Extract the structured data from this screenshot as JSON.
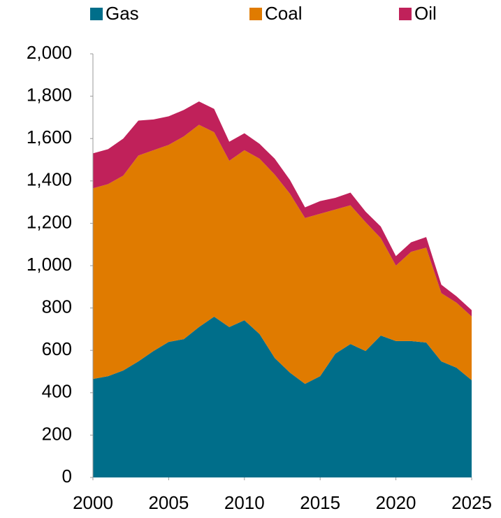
{
  "chart_data": {
    "type": "stacked_area",
    "x": [
      2000,
      2001,
      2002,
      2003,
      2004,
      2005,
      2006,
      2007,
      2008,
      2009,
      2010,
      2011,
      2012,
      2013,
      2014,
      2015,
      2016,
      2017,
      2018,
      2019,
      2020,
      2021,
      2022,
      2023,
      2024,
      2025
    ],
    "series": [
      {
        "name": "Gas",
        "color": "#006e8a",
        "values": [
          465,
          478,
          505,
          548,
          597,
          640,
          653,
          710,
          759,
          710,
          742,
          677,
          564,
          495,
          442,
          478,
          584,
          630,
          597,
          670,
          644,
          644,
          637,
          548,
          518,
          459
        ]
      },
      {
        "name": "Coal",
        "color": "#e07b00",
        "values": [
          900,
          907,
          920,
          972,
          948,
          930,
          957,
          955,
          871,
          785,
          803,
          828,
          866,
          845,
          783,
          767,
          681,
          655,
          608,
          460,
          356,
          421,
          448,
          322,
          307,
          301
        ]
      },
      {
        "name": "Oil",
        "color": "#c0215a",
        "values": [
          165,
          165,
          175,
          165,
          145,
          135,
          125,
          110,
          110,
          90,
          80,
          70,
          75,
          65,
          50,
          60,
          55,
          60,
          50,
          55,
          45,
          45,
          50,
          40,
          30,
          30
        ]
      }
    ],
    "xlim": [
      2000,
      2025
    ],
    "xticks": [
      2000,
      2005,
      2010,
      2015,
      2020,
      2025
    ],
    "ylim": [
      0,
      2000
    ],
    "yticks": [
      0,
      200,
      400,
      600,
      800,
      {
        "value": 1000,
        "label": "1,000"
      },
      {
        "value": 1200,
        "label": "1,200"
      },
      {
        "value": 1400,
        "label": "1,400"
      },
      {
        "value": 1600,
        "label": "1,600"
      },
      {
        "value": 1800,
        "label": "1,800"
      },
      {
        "value": 2000,
        "label": "2,000"
      }
    ],
    "grid": false,
    "legend": "top"
  }
}
